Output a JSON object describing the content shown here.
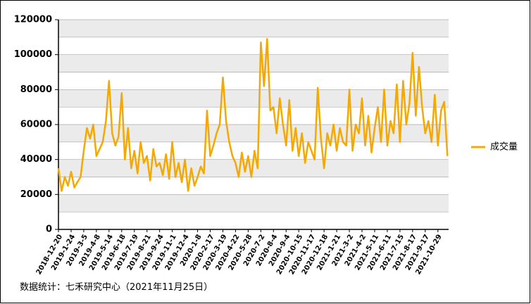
{
  "chart_data": {
    "type": "line",
    "categories": [
      "2018-12-20",
      null,
      null,
      null,
      "2019-1-24",
      null,
      null,
      null,
      "2019-3-5",
      null,
      null,
      null,
      "2019-4-8",
      null,
      null,
      null,
      "2019-5-14",
      null,
      null,
      null,
      "2019-6-18",
      null,
      null,
      null,
      "2019-7-19",
      null,
      null,
      null,
      "2019-8-21",
      null,
      null,
      null,
      "2019-9-24",
      null,
      null,
      null,
      "2019-11-1",
      null,
      null,
      null,
      "2019-12-4",
      null,
      null,
      null,
      "2020-1-8",
      null,
      null,
      null,
      "2020-2-17",
      null,
      null,
      null,
      "2020-3-19",
      null,
      null,
      null,
      "2020-4-22",
      null,
      null,
      null,
      "2020-5-28",
      null,
      null,
      null,
      "2020-7-2",
      null,
      null,
      null,
      "2020-8-4",
      null,
      null,
      null,
      "2020-9-4",
      null,
      null,
      null,
      "2020-10-15",
      null,
      null,
      null,
      "2020-11-17",
      null,
      null,
      null,
      "2020-12-18",
      null,
      null,
      null,
      "2021-1-21",
      null,
      null,
      null,
      "2021-3-2",
      null,
      null,
      null,
      "2021-4-2",
      null,
      null,
      null,
      "2021-5-11",
      null,
      null,
      null,
      "2021-6-11",
      null,
      null,
      null,
      "2021-7-15",
      null,
      null,
      null,
      "2021-8-17",
      null,
      null,
      null,
      "2021-9-17",
      null,
      null,
      null,
      "2021-10-29",
      null,
      null,
      null
    ],
    "series": [
      {
        "name": "成交量",
        "color": "#f5a800",
        "values": [
          35000,
          22000,
          30000,
          25000,
          33000,
          24000,
          27000,
          30000,
          45000,
          58000,
          52000,
          60000,
          42000,
          46000,
          50000,
          62000,
          85000,
          55000,
          48000,
          53000,
          78000,
          40000,
          58000,
          35000,
          45000,
          32000,
          50000,
          38000,
          42000,
          28000,
          46000,
          36000,
          38000,
          31000,
          43000,
          29000,
          50000,
          30000,
          38000,
          27000,
          40000,
          22000,
          35000,
          25000,
          30000,
          36000,
          32000,
          68000,
          42000,
          48000,
          55000,
          60000,
          87000,
          62000,
          50000,
          42000,
          38000,
          30000,
          44000,
          33000,
          42000,
          30000,
          45000,
          35000,
          107000,
          82000,
          109000,
          68000,
          70000,
          55000,
          75000,
          60000,
          48000,
          74000,
          45000,
          58000,
          42000,
          55000,
          38000,
          50000,
          45000,
          40000,
          81000,
          52000,
          35000,
          55000,
          48000,
          60000,
          45000,
          58000,
          50000,
          48000,
          80000,
          45000,
          60000,
          55000,
          75000,
          48000,
          65000,
          44000,
          58000,
          70000,
          50000,
          80000,
          48000,
          62000,
          55000,
          83000,
          50000,
          85000,
          60000,
          72000,
          101000,
          65000,
          93000,
          70000,
          55000,
          62000,
          50000,
          77000,
          48000,
          68000,
          73000,
          42000
        ]
      }
    ],
    "ylim": [
      0,
      120000
    ],
    "yticks": [
      0,
      20000,
      40000,
      60000,
      80000,
      100000,
      120000
    ],
    "grid": true,
    "legend": "right",
    "source": "数据统计：七禾研究中心（2021年11月25日）"
  }
}
